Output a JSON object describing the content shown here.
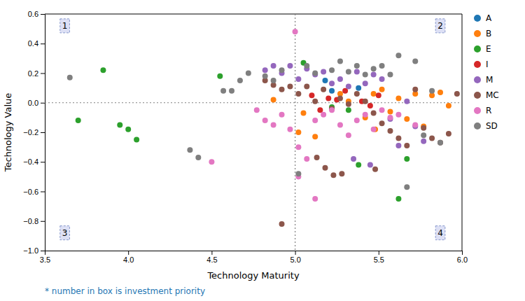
{
  "chart_data": {
    "type": "scatter",
    "xlabel": "Technology Maturity",
    "ylabel": "Technology Value",
    "xlim": [
      3.5,
      6.0
    ],
    "ylim": [
      -1.0,
      0.6
    ],
    "xticks": [
      3.5,
      {
        "value": 4.0,
        "label": "4.0"
      },
      4.5,
      {
        "value": 5.0,
        "label": "5.0"
      },
      5.5,
      {
        "value": 6.0,
        "label": "6.0"
      }
    ],
    "yticks": [
      {
        "value": -1.0,
        "label": "−1.0"
      },
      {
        "value": -0.8,
        "label": "−0.8"
      },
      {
        "value": -0.6,
        "label": "−0.6"
      },
      {
        "value": -0.4,
        "label": "−0.4"
      },
      {
        "value": -0.2,
        "label": "−0.2"
      },
      {
        "value": 0.0,
        "label": "0.0"
      },
      0.2,
      0.4,
      0.6
    ],
    "legend": "right",
    "series": [
      {
        "name": "A",
        "color": "#1f77b4",
        "x": [
          5.18,
          5.38,
          5.22
        ],
        "values": [
          0.15,
          0.1,
          0.08
        ]
      },
      {
        "name": "B",
        "color": "#ff7f0e",
        "x": [
          4.87,
          5.02,
          5.12,
          5.27,
          5.32,
          5.47,
          5.52,
          5.57,
          5.62,
          5.67,
          5.72,
          5.77,
          5.82,
          5.87,
          5.92,
          5.05,
          5.42,
          5.48
        ],
        "values": [
          0.02,
          -0.2,
          -0.23,
          0.06,
          0.01,
          0.06,
          0.09,
          -0.06,
          0.03,
          -0.11,
          0.06,
          -0.16,
          0.05,
          0.07,
          -0.02,
          -0.07,
          -0.1,
          -0.18
        ]
      },
      {
        "name": "E",
        "color": "#2ca02c",
        "x": [
          3.7,
          3.85,
          3.95,
          4.0,
          4.05,
          4.55,
          5.05,
          5.22,
          5.32,
          5.38,
          5.62,
          5.67
        ],
        "values": [
          -0.12,
          0.22,
          -0.15,
          -0.18,
          -0.25,
          0.18,
          0.27,
          -0.03,
          -0.05,
          -0.42,
          -0.65,
          -0.38
        ]
      },
      {
        "name": "I",
        "color": "#d62728",
        "x": [
          5.1,
          5.2,
          5.3,
          5.4,
          5.45,
          5.5,
          5.15,
          5.25
        ],
        "values": [
          0.05,
          0.03,
          0.08,
          0.01,
          -0.02,
          0.05,
          -0.05,
          0.02
        ]
      },
      {
        "name": "M",
        "color": "#9467bd",
        "x": [
          4.82,
          4.87,
          4.92,
          4.97,
          5.02,
          5.07,
          5.12,
          5.17,
          5.22,
          5.27,
          5.32,
          5.37,
          5.42,
          5.47,
          5.52,
          5.57,
          5.62,
          5.67,
          5.72,
          5.77,
          5.35,
          5.45
        ],
        "values": [
          0.22,
          0.25,
          0.2,
          0.25,
          0.16,
          0.23,
          0.19,
          0.21,
          0.13,
          0.16,
          0.11,
          0.21,
          0.13,
          0.19,
          0.16,
          -0.11,
          -0.29,
          0.01,
          -0.16,
          -0.26,
          -0.38,
          -0.42
        ]
      },
      {
        "name": "MC",
        "color": "#8c564b",
        "x": [
          4.82,
          4.87,
          4.92,
          4.97,
          5.02,
          5.07,
          5.12,
          5.17,
          5.22,
          5.27,
          5.32,
          5.37,
          5.42,
          5.47,
          5.52,
          5.57,
          5.62,
          5.67,
          5.72,
          5.77,
          5.82,
          5.87,
          5.92,
          5.97,
          5.13,
          5.18,
          5.23,
          4.92,
          5.28,
          5.48
        ],
        "values": [
          0.15,
          0.12,
          0.09,
          0.11,
          0.06,
          0.11,
          0.01,
          0.09,
          -0.04,
          0.03,
          -0.01,
          0.06,
          0.01,
          -0.07,
          -0.14,
          -0.19,
          -0.24,
          -0.29,
          0.09,
          -0.17,
          -0.24,
          -0.27,
          -0.21,
          0.06,
          -0.37,
          -0.44,
          -0.49,
          -0.82,
          -0.48,
          -0.45
        ]
      },
      {
        "name": "R",
        "color": "#e377c2",
        "x": [
          4.5,
          4.77,
          4.82,
          4.87,
          4.92,
          4.97,
          5.02,
          5.02,
          5.0,
          5.07,
          5.12,
          5.12,
          5.17,
          5.22,
          5.27,
          5.32,
          5.37,
          5.42,
          5.47,
          5.52,
          5.57,
          5.62,
          5.72
        ],
        "values": [
          -0.4,
          -0.05,
          -0.12,
          -0.15,
          -0.08,
          -0.18,
          -0.3,
          -0.5,
          0.48,
          -0.38,
          -0.12,
          -0.65,
          -0.08,
          -0.05,
          -0.15,
          -0.22,
          -0.12,
          -0.08,
          -0.18,
          -0.05,
          -0.1,
          -0.08,
          -0.15
        ]
      },
      {
        "name": "SD",
        "color": "#7f7f7f",
        "x": [
          3.65,
          4.37,
          4.42,
          4.57,
          4.62,
          4.67,
          4.72,
          4.82,
          4.87,
          4.92,
          5.02,
          5.07,
          5.12,
          5.22,
          5.27,
          5.32,
          5.37,
          5.42,
          5.47,
          5.52,
          5.57,
          5.62,
          5.67,
          5.72,
          5.77,
          5.82,
          5.87
        ],
        "values": [
          0.17,
          -0.32,
          -0.37,
          0.08,
          0.08,
          0.15,
          0.2,
          0.18,
          0.15,
          0.22,
          -0.48,
          0.25,
          0.2,
          0.22,
          0.28,
          0.21,
          0.25,
          0.19,
          0.23,
          0.25,
          0.19,
          0.32,
          -0.57,
          0.28,
          -0.22,
          0.08,
          -0.27
        ]
      }
    ],
    "reference_lines": [
      {
        "axis": "x",
        "value": 5.0
      },
      {
        "axis": "y",
        "value": 0.0
      }
    ],
    "annotations": [
      {
        "text": "1",
        "x": 3.62,
        "y": 0.52
      },
      {
        "text": "2",
        "x": 5.87,
        "y": 0.52
      },
      {
        "text": "3",
        "x": 3.62,
        "y": -0.88
      },
      {
        "text": "4",
        "x": 5.87,
        "y": -0.88
      }
    ],
    "footnote": {
      "text": "* number in box is investment priority",
      "color": "#1f77b4"
    }
  }
}
